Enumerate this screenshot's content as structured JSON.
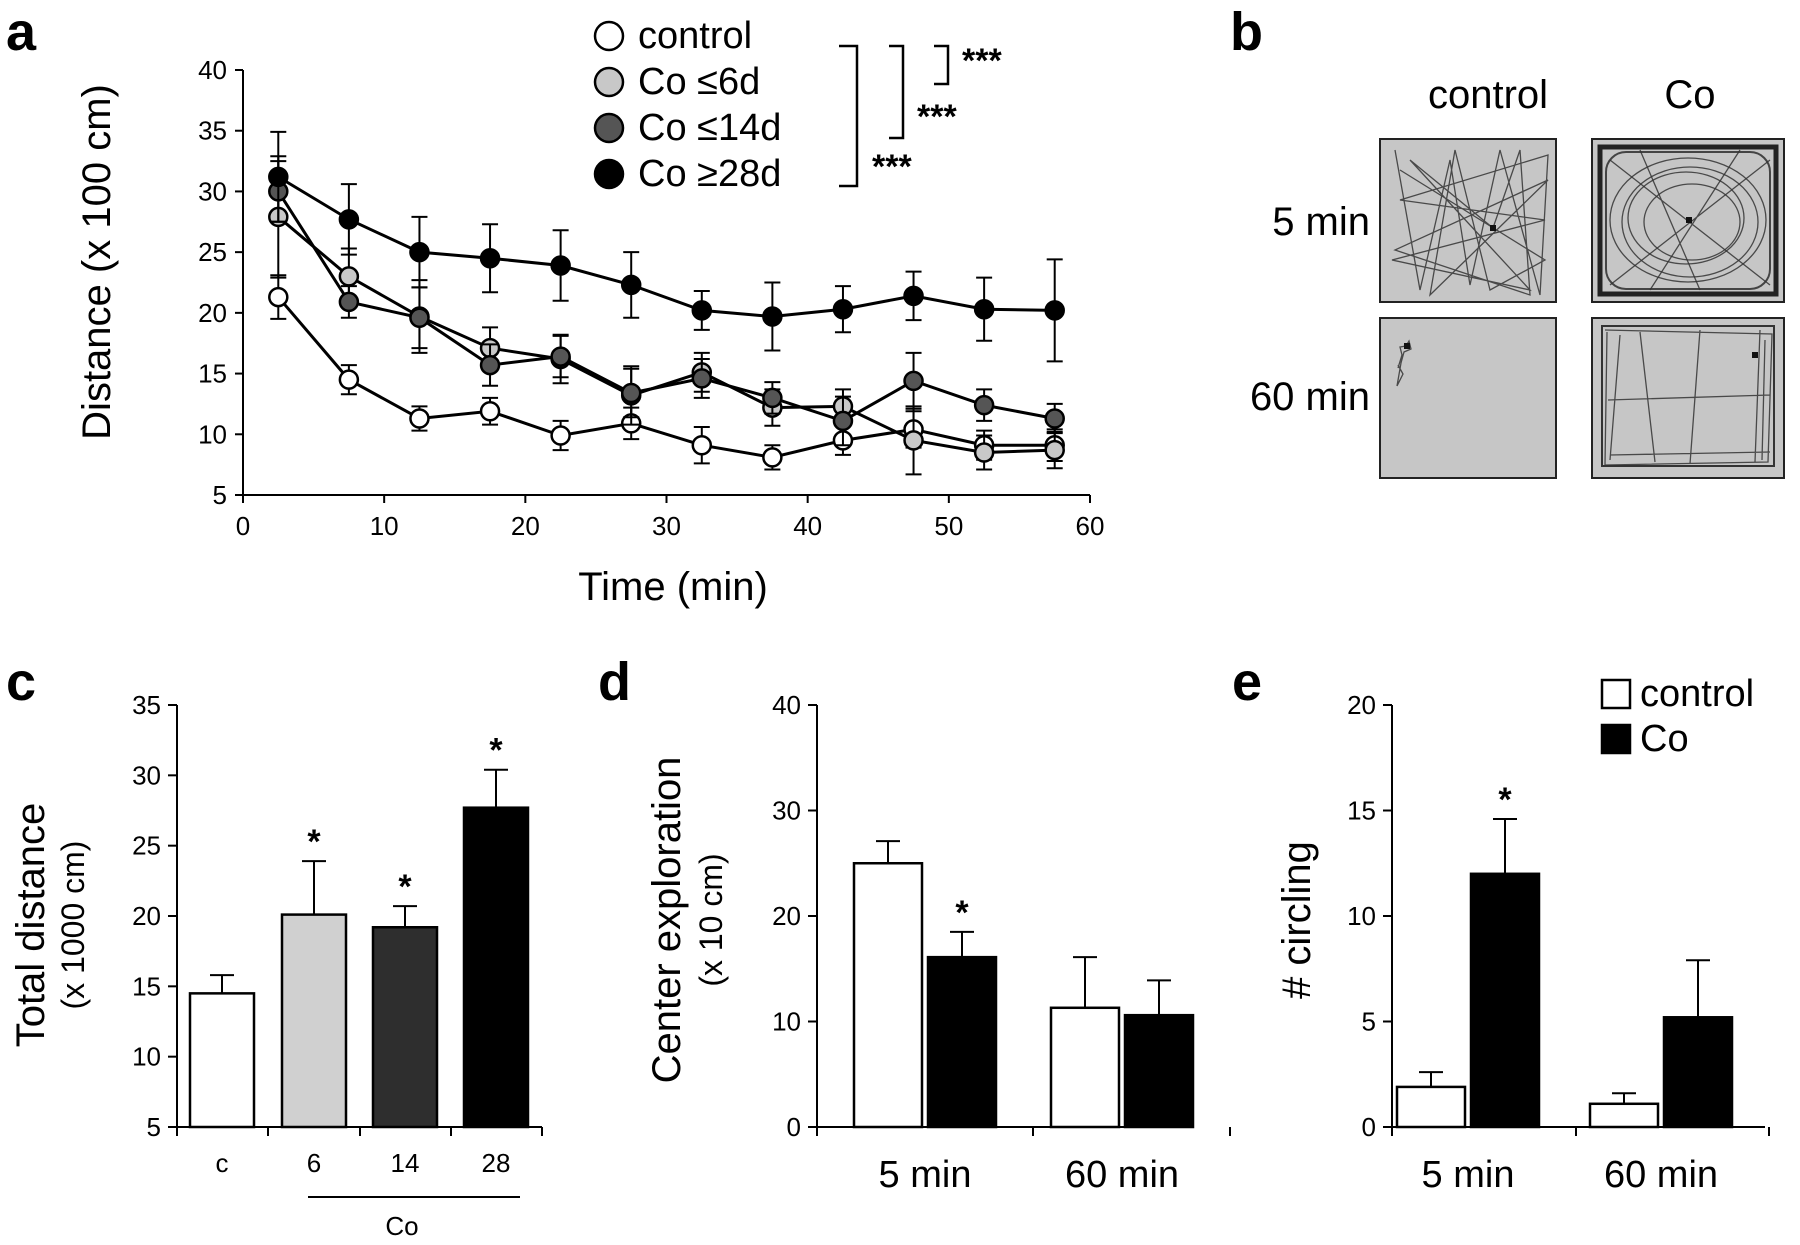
{
  "panels": {
    "a": {
      "letter": "a"
    },
    "b": {
      "letter": "b",
      "col_labels": [
        "control",
        "Co"
      ],
      "row_labels": [
        "5 min",
        "60 min"
      ]
    },
    "c": {
      "letter": "c"
    },
    "d": {
      "letter": "d"
    },
    "e": {
      "letter": "e"
    }
  },
  "chart_data": [
    {
      "panel": "a",
      "type": "line",
      "xlabel": "Time (min)",
      "ylabel": "Distance (x 100 cm)",
      "xlim": [
        0,
        60
      ],
      "ylim": [
        5,
        40
      ],
      "xticks": [
        0,
        10,
        20,
        30,
        40,
        50,
        60
      ],
      "yticks": [
        5,
        10,
        15,
        20,
        25,
        30,
        35,
        40
      ],
      "x": [
        2.5,
        7.5,
        12.5,
        17.5,
        22.5,
        27.5,
        32.5,
        37.5,
        42.5,
        47.5,
        52.5,
        57.5
      ],
      "series": [
        {
          "name": "control",
          "color": "#ffffff",
          "values": [
            21.3,
            14.5,
            11.3,
            11.9,
            9.9,
            10.9,
            9.1,
            8.1,
            9.5,
            10.4,
            9.1,
            9.1
          ],
          "errors": [
            1.8,
            1.2,
            1.0,
            1.1,
            1.2,
            1.3,
            1.5,
            1.0,
            1.2,
            1.5,
            1.2,
            1.3
          ]
        },
        {
          "name": "Co ≤6d",
          "color": "#c8c8c8",
          "values": [
            27.9,
            23.0,
            19.7,
            17.1,
            16.2,
            13.2,
            15.1,
            12.2,
            12.3,
            9.5,
            8.5,
            8.7
          ],
          "errors": [
            5.0,
            2.3,
            3.0,
            1.7,
            2.0,
            2.4,
            1.6,
            1.5,
            1.4,
            2.8,
            1.4,
            1.5
          ]
        },
        {
          "name": "Co ≤14d",
          "color": "#555555",
          "values": [
            30.0,
            20.9,
            19.6,
            15.7,
            16.4,
            13.4,
            14.6,
            13.0,
            11.1,
            14.4,
            12.4,
            11.3
          ],
          "errors": [
            2.5,
            1.3,
            2.5,
            1.7,
            1.7,
            2.0,
            1.6,
            1.3,
            2.0,
            2.3,
            1.3,
            1.2
          ]
        },
        {
          "name": "Co ≥28d",
          "color": "#000000",
          "values": [
            31.2,
            27.7,
            25.0,
            24.5,
            23.9,
            22.3,
            20.2,
            19.7,
            20.3,
            21.4,
            20.3,
            20.2
          ],
          "errors": [
            3.7,
            2.9,
            2.9,
            2.8,
            2.9,
            2.7,
            1.6,
            2.8,
            1.9,
            2.0,
            2.6,
            4.2
          ]
        }
      ],
      "significance": [
        "***",
        "***",
        "***"
      ]
    },
    {
      "panel": "c",
      "type": "bar",
      "ylabel": "Total distance",
      "ylabel_units": "(x 1000 cm)",
      "ylim": [
        5,
        35
      ],
      "yticks": [
        5,
        10,
        15,
        20,
        25,
        30,
        35
      ],
      "categories": [
        "c",
        "6",
        "14",
        "28"
      ],
      "group_label": "Co",
      "values": [
        14.5,
        20.1,
        19.2,
        27.7
      ],
      "errors": [
        1.3,
        3.8,
        1.5,
        2.7
      ],
      "colors": [
        "#ffffff",
        "#d0d0d0",
        "#2e2e2e",
        "#000000"
      ],
      "stars": [
        "",
        "*",
        "*",
        "*"
      ]
    },
    {
      "panel": "d",
      "type": "bar",
      "ylabel": "Center exploration",
      "ylabel_units": "(x 10 cm)",
      "ylim": [
        0,
        40
      ],
      "yticks": [
        0,
        10,
        20,
        30,
        40
      ],
      "categories": [
        "5 min",
        "60 min"
      ],
      "series": [
        {
          "name": "control",
          "color": "#ffffff",
          "values": [
            25.0,
            11.3
          ],
          "errors": [
            2.1,
            4.8
          ],
          "stars": [
            "",
            ""
          ]
        },
        {
          "name": "Co",
          "color": "#000000",
          "values": [
            16.1,
            10.6
          ],
          "errors": [
            2.4,
            3.3
          ],
          "stars": [
            "*",
            ""
          ]
        }
      ]
    },
    {
      "panel": "e",
      "type": "bar",
      "ylabel": "# circling",
      "ylim": [
        0,
        20
      ],
      "yticks": [
        0,
        5,
        10,
        15,
        20
      ],
      "categories": [
        "5 min",
        "60 min"
      ],
      "series": [
        {
          "name": "control",
          "color": "#ffffff",
          "values": [
            1.9,
            1.1
          ],
          "errors": [
            0.7,
            0.5
          ],
          "stars": [
            "",
            ""
          ]
        },
        {
          "name": "Co",
          "color": "#000000",
          "values": [
            12.0,
            5.2
          ],
          "errors": [
            2.6,
            2.7
          ],
          "stars": [
            "*",
            ""
          ]
        }
      ]
    }
  ]
}
